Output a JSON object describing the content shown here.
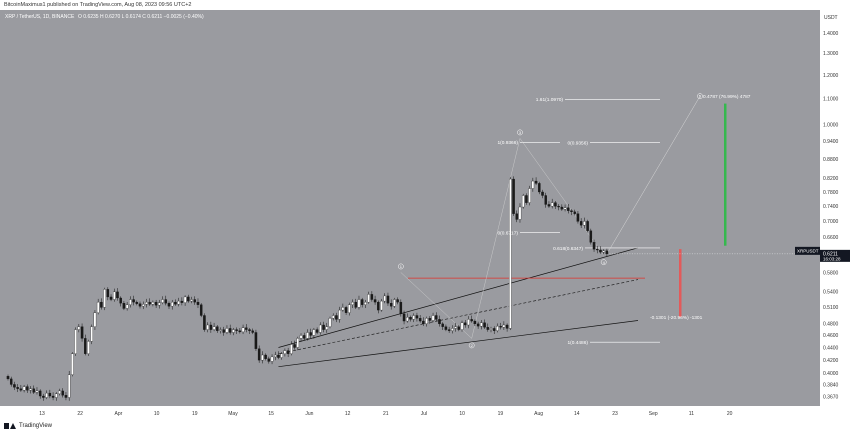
{
  "header": {
    "text": "BitcoinMaximus1 published on TradingView.com, Aug 08, 2023 09:56 UTC+2"
  },
  "footer": {
    "brand": "TradingView"
  },
  "colors": {
    "background": "#9a9ba0",
    "candle_up": "#ffffff",
    "candle_down": "#1a1a1a",
    "axis_panel": "#ffffff",
    "price_tag": "#131722",
    "red_line": "#e0302a",
    "red_bar": "#e35a5a",
    "green_bar": "#35b84e",
    "channel": "#111111"
  },
  "chart_data": {
    "type": "candlestick",
    "title": "XRP / TetherUS, 1D, BINANCE",
    "ohlc_label": "O 0.6235  H 0.6270  L 0.6174  C 0.6211  −0.0025 (−0.40%)",
    "currency": "USDT",
    "y_scale": "log",
    "ylim": [
      0.36,
      1.48
    ],
    "y_ticks": [
      "1.4000",
      "1.3000",
      "1.2000",
      "1.1000",
      "1.0000",
      "0.9400",
      "0.8800",
      "0.8200",
      "0.7800",
      "0.7400",
      "0.7000",
      "0.6600",
      "0.6200",
      "0.5800",
      "0.5400",
      "0.5100",
      "0.4800",
      "0.4600",
      "0.4400",
      "0.4200",
      "0.4000",
      "0.3840",
      "0.3670"
    ],
    "x_ticks": [
      "13",
      "22",
      "Apr",
      "10",
      "19",
      "May",
      "15",
      "Jun",
      "12",
      "21",
      "Jul",
      "10",
      "19",
      "Aug",
      "14",
      "23",
      "Sep",
      "11",
      "20"
    ],
    "last_price": "0.6211",
    "countdown": "16:03:28",
    "symbol_tag": "XRPUSDT",
    "closes": [
      0.392,
      0.384,
      0.38,
      0.378,
      0.376,
      0.381,
      0.376,
      0.378,
      0.373,
      0.375,
      0.368,
      0.366,
      0.372,
      0.368,
      0.366,
      0.371,
      0.375,
      0.369,
      0.366,
      0.398,
      0.43,
      0.47,
      0.475,
      0.455,
      0.43,
      0.45,
      0.475,
      0.5,
      0.52,
      0.51,
      0.545,
      0.53,
      0.525,
      0.54,
      0.528,
      0.518,
      0.508,
      0.515,
      0.525,
      0.52,
      0.517,
      0.512,
      0.516,
      0.52,
      0.516,
      0.52,
      0.514,
      0.519,
      0.525,
      0.518,
      0.512,
      0.52,
      0.516,
      0.522,
      0.519,
      0.53,
      0.522,
      0.525,
      0.52,
      0.515,
      0.495,
      0.47,
      0.478,
      0.47,
      0.475,
      0.468,
      0.47,
      0.465,
      0.472,
      0.465,
      0.47,
      0.468,
      0.466,
      0.473,
      0.47,
      0.468,
      0.465,
      0.438,
      0.42,
      0.428,
      0.422,
      0.418,
      0.425,
      0.428,
      0.424,
      0.43,
      0.435,
      0.43,
      0.445,
      0.44,
      0.455,
      0.46,
      0.455,
      0.465,
      0.46,
      0.47,
      0.465,
      0.478,
      0.47,
      0.475,
      0.49,
      0.495,
      0.488,
      0.505,
      0.51,
      0.5,
      0.515,
      0.52,
      0.51,
      0.525,
      0.515,
      0.52,
      0.535,
      0.525,
      0.52,
      0.505,
      0.522,
      0.532,
      0.518,
      0.512,
      0.525,
      0.52,
      0.498,
      0.485,
      0.492,
      0.488,
      0.495,
      0.49,
      0.485,
      0.48,
      0.49,
      0.486,
      0.495,
      0.488,
      0.48,
      0.475,
      0.47,
      0.468,
      0.472,
      0.475,
      0.47,
      0.482,
      0.478,
      0.488,
      0.485,
      0.48,
      0.476,
      0.482,
      0.474,
      0.47,
      0.472,
      0.468,
      0.476,
      0.474,
      0.478,
      0.472,
      0.818,
      0.72,
      0.705,
      0.738,
      0.77,
      0.75,
      0.79,
      0.812,
      0.805,
      0.78,
      0.77,
      0.745,
      0.74,
      0.75,
      0.74,
      0.738,
      0.732,
      0.736,
      0.728,
      0.725,
      0.72,
      0.7,
      0.69,
      0.7,
      0.676,
      0.648,
      0.632,
      0.63,
      0.625,
      0.628,
      0.621
    ],
    "fib_labels": [
      {
        "text": "1.61(1.0970)",
        "price": 1.097
      },
      {
        "text": "1(0.9366)",
        "price": 0.9366
      },
      {
        "text": "0(0.9356)",
        "price": 0.9356
      },
      {
        "text": "0(0.6717)",
        "price": 0.6717
      },
      {
        "text": "0.618(0.6347)",
        "price": 0.6347
      },
      {
        "text": "1(0.4486)",
        "price": 0.4486
      }
    ],
    "annotations": [
      {
        "text": "0.4787 (76.99%) 4787",
        "kind": "target"
      },
      {
        "text": "-0.1301 (-20.96%) -1301",
        "kind": "downside"
      }
    ],
    "wave_labels": [
      "1",
      "2",
      "3",
      "4",
      "5"
    ]
  }
}
